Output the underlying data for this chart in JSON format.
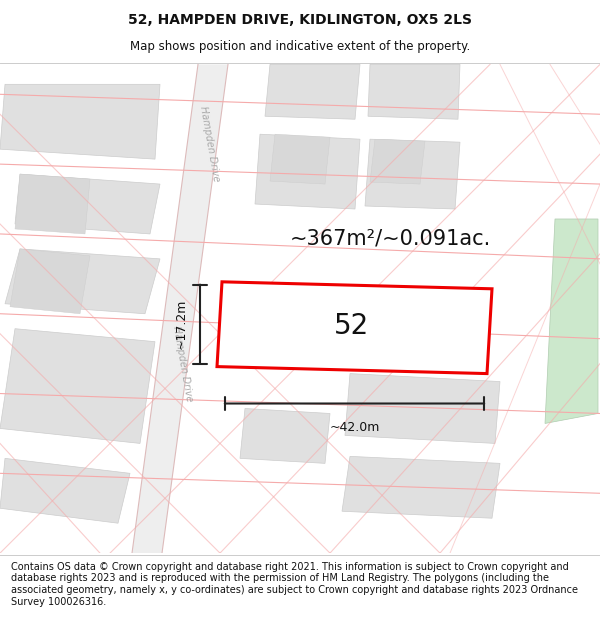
{
  "title": "52, HAMPDEN DRIVE, KIDLINGTON, OX5 2LS",
  "subtitle": "Map shows position and indicative extent of the property.",
  "footer": "Contains OS data © Crown copyright and database right 2021. This information is subject to Crown copyright and database rights 2023 and is reproduced with the permission of HM Land Registry. The polygons (including the associated geometry, namely x, y co-ordinates) are subject to Crown copyright and database rights 2023 Ordnance Survey 100026316.",
  "area_text": "~367m²/~0.091ac.",
  "width_label": "~42.0m",
  "height_label": "~17.2m",
  "parcel_number": "52",
  "bg_color": "#ffffff",
  "map_bg": "#ffffff",
  "block_fill": "#e0e0e0",
  "block_edge": "#cccccc",
  "road_line_color": "#f5aaaa",
  "road_outline": "#ddaaaa",
  "plot_line_color": "#ee0000",
  "dim_line_color": "#222222",
  "road_label_color": "#aaaaaa",
  "green_fill": "#cce8cc",
  "green_edge": "#b0ccb0",
  "title_fontsize": 10,
  "subtitle_fontsize": 8.5,
  "footer_fontsize": 7,
  "area_fontsize": 15,
  "parcel_fontsize": 20,
  "dim_fontsize": 9,
  "road_label_fontsize": 7
}
